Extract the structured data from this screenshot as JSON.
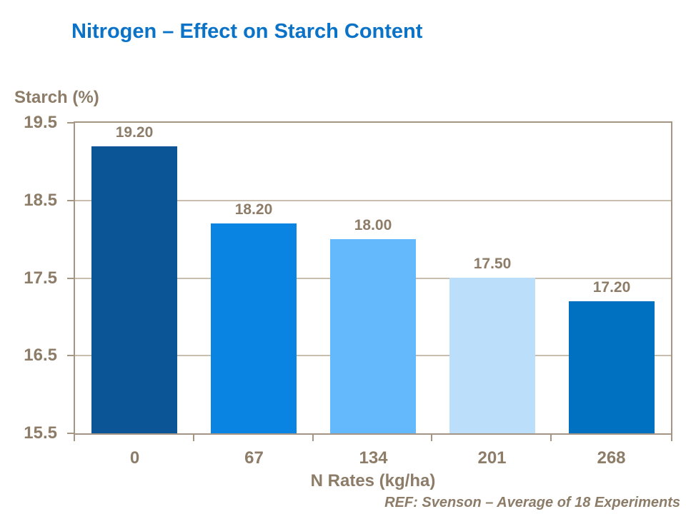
{
  "chart_data": {
    "type": "bar",
    "title": "Nitrogen – Effect on Starch Content",
    "categories": [
      "0",
      "67",
      "134",
      "201",
      "268"
    ],
    "values": [
      19.2,
      18.2,
      18.0,
      17.5,
      17.2
    ],
    "value_labels": [
      "19.20",
      "18.20",
      "18.00",
      "17.50",
      "17.20"
    ],
    "bar_colors": [
      "#0B5596",
      "#0984E3",
      "#64B9FC",
      "#BBDEFB",
      "#0070C0"
    ],
    "xlabel": "N Rates (kg/ha)",
    "ylabel": "Starch (%)",
    "ylim": [
      15.5,
      19.5
    ],
    "yticks": [
      19.5,
      18.5,
      17.5,
      16.5,
      15.5
    ],
    "ytick_labels": [
      "19.5",
      "18.5",
      "17.5",
      "16.5",
      "15.5"
    ],
    "grid": true,
    "legend": false
  },
  "footer": {
    "reference": "REF: Svenson – Average of 18 Experiments"
  },
  "colors": {
    "title": "#0A73C8",
    "text": "#8C7C68",
    "axis_line": "#A59683",
    "gridline": "#C9BEAE",
    "background": "#ffffff"
  }
}
